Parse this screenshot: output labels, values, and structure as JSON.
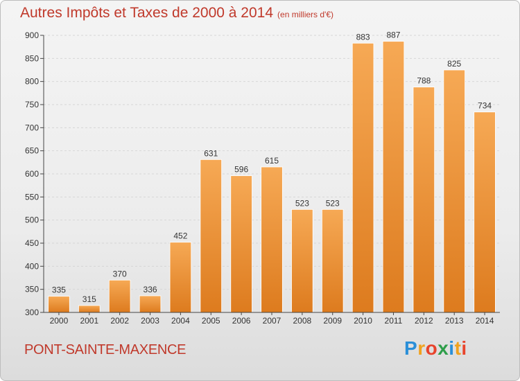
{
  "chart_data": {
    "type": "bar",
    "title": "Autres Impôts et Taxes de 2000 à 2014",
    "subtitle": "(en milliers d'€)",
    "categories": [
      "2000",
      "2001",
      "2002",
      "2003",
      "2004",
      "2005",
      "2006",
      "2007",
      "2008",
      "2009",
      "2010",
      "2011",
      "2012",
      "2013",
      "2014"
    ],
    "values": [
      335,
      315,
      370,
      336,
      452,
      631,
      596,
      615,
      523,
      523,
      883,
      887,
      788,
      825,
      734
    ],
    "ylim": [
      300,
      900
    ],
    "yticks": [
      300,
      350,
      400,
      450,
      500,
      550,
      600,
      650,
      700,
      750,
      800,
      850,
      900
    ],
    "grid": true,
    "xlabel": "",
    "ylabel": "",
    "bar_color": "#f0922e",
    "bar_gradient": [
      "#f6a955",
      "#dd7b1e"
    ]
  },
  "footer": {
    "city": "PONT-SAINTE-MAXENCE",
    "logo_letters": [
      "P",
      "r",
      "o",
      "x",
      "i",
      "t",
      "i"
    ],
    "logo_colors": [
      "#2a8fd8",
      "#f0a21e",
      "#e8442c",
      "#2e9e4a",
      "#2a8fd8",
      "#f0a21e",
      "#e8442c"
    ]
  },
  "colors": {
    "title": "#c0392b",
    "grid": "#d6d6d6",
    "axis": "#444444"
  }
}
